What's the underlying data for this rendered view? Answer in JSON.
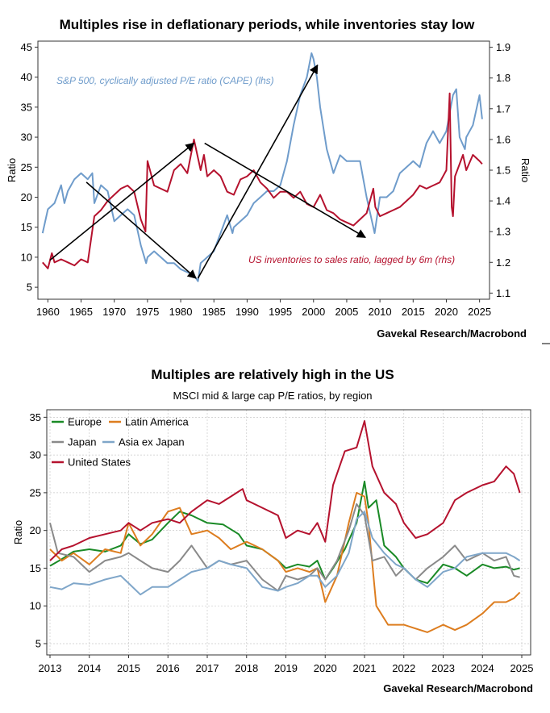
{
  "colors": {
    "blue": "#6f9ccb",
    "red": "#b5122e",
    "green": "#1a8a26",
    "orange": "#dd7d1f",
    "gray": "#8a8a8a",
    "ltblue": "#7fa6c9",
    "grid": "#c9c9c9"
  },
  "chart_data": [
    {
      "type": "line",
      "title": "Multiples rise in deflationary periods, while inventories stay low",
      "source": "Gavekal Research/Macrobond",
      "ylabel_left": "Ratio",
      "ylabel_right": "Ratio",
      "ylim_left": [
        3,
        46
      ],
      "ylim_right": [
        1.08,
        1.92
      ],
      "xlim": [
        1958.5,
        2026.5
      ],
      "xticks": [
        "1960",
        "1965",
        "1970",
        "1975",
        "1980",
        "1985",
        "1990",
        "1995",
        "2000",
        "2005",
        "2010",
        "2015",
        "2020",
        "2025"
      ],
      "yticks_left": [
        "5",
        "10",
        "15",
        "20",
        "25",
        "30",
        "35",
        "40",
        "45"
      ],
      "yticks_right": [
        "1.1",
        "1.2",
        "1.3",
        "1.4",
        "1.5",
        "1.6",
        "1.7",
        "1.8",
        "1.9"
      ],
      "annotations": {
        "cape": "S&P 500, cyclically adjusted P/E ratio (CAPE) (lhs)",
        "inv": "US inventories to sales ratio, lagged by 6m (rhs)"
      },
      "series": [
        {
          "name": "S&P 500, cyclically adjusted P/E ratio (CAPE) (lhs)",
          "axis": "left",
          "color": "blue",
          "x": [
            1959.2,
            1960,
            1961,
            1962,
            1962.5,
            1963,
            1964,
            1965,
            1966,
            1966.7,
            1967,
            1968,
            1969,
            1970,
            1971,
            1972,
            1973,
            1974,
            1974.8,
            1975,
            1976,
            1977,
            1978,
            1979,
            1980,
            1981,
            1982,
            1982.6,
            1983,
            1984,
            1985,
            1986,
            1987,
            1987.8,
            1988,
            1989,
            1990,
            1991,
            1992,
            1993,
            1994,
            1995,
            1996,
            1997,
            1998,
            1999,
            1999.7,
            2000,
            2000.5,
            2001,
            2002,
            2003,
            2004,
            2005,
            2006,
            2007,
            2008,
            2009,
            2009.2,
            2010,
            2011,
            2012,
            2013,
            2014,
            2015,
            2016,
            2017,
            2018,
            2019,
            2020,
            2021,
            2021.5,
            2022,
            2022.8,
            2023,
            2024,
            2025,
            2025.4
          ],
          "values": [
            14,
            18,
            19,
            22,
            19,
            21,
            23,
            24,
            23,
            24,
            19,
            22,
            21,
            16,
            17,
            18,
            17,
            12,
            9,
            10,
            11,
            10,
            9,
            9,
            8,
            7.5,
            7,
            6,
            9,
            10,
            11,
            14,
            17,
            14,
            15,
            16,
            17,
            19,
            20,
            21,
            21,
            22,
            26,
            32,
            37,
            40,
            44,
            43,
            40,
            35,
            28,
            24,
            27,
            26,
            26,
            26,
            20,
            15,
            14,
            20,
            20,
            21,
            24,
            25,
            26,
            25,
            29,
            31,
            29,
            31,
            37,
            38,
            30,
            28,
            30,
            32,
            37,
            33
          ]
        },
        {
          "name": "US inventories to sales ratio, lagged by 6m (rhs)",
          "axis": "right",
          "color": "red",
          "x": [
            1959.2,
            1960,
            1960.6,
            1961,
            1962,
            1963,
            1964,
            1965,
            1966,
            1967,
            1968,
            1969,
            1970,
            1971,
            1972,
            1973,
            1974,
            1974.7,
            1975,
            1976,
            1977,
            1978,
            1979,
            1980,
            1981,
            1982,
            1983,
            1983.5,
            1984,
            1985,
            1986,
            1987,
            1988,
            1989,
            1990,
            1991,
            1992,
            1993,
            1994,
            1995,
            1996,
            1997,
            1998,
            1999,
            2000,
            2001,
            2002,
            2003,
            2004,
            2005,
            2006,
            2007,
            2008,
            2009,
            2009.3,
            2010,
            2011,
            2012,
            2013,
            2014,
            2015,
            2016,
            2017,
            2018,
            2019,
            2020,
            2020.5,
            2020.8,
            2021,
            2021.3,
            2022,
            2022.5,
            2023,
            2024,
            2025,
            2025.4
          ],
          "values": [
            1.2,
            1.18,
            1.23,
            1.2,
            1.21,
            1.2,
            1.19,
            1.21,
            1.2,
            1.35,
            1.37,
            1.4,
            1.42,
            1.44,
            1.45,
            1.43,
            1.34,
            1.3,
            1.53,
            1.45,
            1.44,
            1.43,
            1.5,
            1.52,
            1.49,
            1.6,
            1.5,
            1.55,
            1.48,
            1.5,
            1.48,
            1.43,
            1.42,
            1.47,
            1.48,
            1.5,
            1.46,
            1.44,
            1.41,
            1.43,
            1.43,
            1.41,
            1.43,
            1.39,
            1.38,
            1.42,
            1.37,
            1.36,
            1.34,
            1.33,
            1.32,
            1.34,
            1.36,
            1.44,
            1.38,
            1.35,
            1.36,
            1.37,
            1.38,
            1.4,
            1.42,
            1.45,
            1.44,
            1.45,
            1.46,
            1.5,
            1.75,
            1.38,
            1.35,
            1.48,
            1.52,
            1.55,
            1.5,
            1.55,
            1.53,
            1.52
          ]
        }
      ],
      "arrows": [
        {
          "from": [
            1960.3,
            9.5
          ],
          "to": [
            1982,
            29
          ]
        },
        {
          "from": [
            1965.8,
            22.5
          ],
          "to": [
            1982.3,
            6.5
          ]
        },
        {
          "from": [
            1982.6,
            6.5
          ],
          "to": [
            2000.6,
            42
          ]
        },
        {
          "from": [
            1983.6,
            29
          ],
          "to": [
            2007.8,
            13.3
          ]
        }
      ]
    },
    {
      "type": "line",
      "title": "Multiples are relatively high in the US",
      "subtitle": "MSCI mid & large cap P/E ratios, by region",
      "source": "Gavekal Research/Macrobond",
      "ylabel": "Ratio",
      "ylim": [
        3.5,
        36
      ],
      "xlim": [
        2013,
        2025
      ],
      "xticks": [
        "2013",
        "2014",
        "2015",
        "2016",
        "2017",
        "2018",
        "2019",
        "2020",
        "2021",
        "2022",
        "2023",
        "2024",
        "2025"
      ],
      "yticks": [
        "5",
        "10",
        "15",
        "20",
        "25",
        "30",
        "35"
      ],
      "legend": [
        "Europe",
        "Latin America",
        "Japan",
        "Asia ex Japan",
        "United States"
      ],
      "series": [
        {
          "name": "Europe",
          "color": "green",
          "x": [
            2013,
            2013.3,
            2013.6,
            2014,
            2014.4,
            2014.8,
            2015,
            2015.3,
            2015.6,
            2016,
            2016.3,
            2016.6,
            2017,
            2017.4,
            2017.8,
            2018,
            2018.4,
            2018.8,
            2019,
            2019.3,
            2019.6,
            2019.8,
            2020,
            2020.2,
            2020.5,
            2020.8,
            2021,
            2021.1,
            2021.3,
            2021.5,
            2021.8,
            2022,
            2022.3,
            2022.6,
            2023,
            2023.3,
            2023.6,
            2024,
            2024.3,
            2024.6,
            2024.8,
            2024.95
          ],
          "values": [
            15.3,
            16.2,
            17.2,
            17.5,
            17.2,
            18.0,
            19.5,
            18.2,
            18.8,
            21.0,
            22.5,
            22.0,
            21.0,
            20.8,
            19.5,
            18.0,
            17.5,
            16.0,
            15.0,
            15.5,
            15.2,
            16.0,
            13.5,
            15.0,
            17.5,
            21.0,
            26.5,
            23.0,
            24.0,
            18.0,
            16.5,
            15.0,
            13.5,
            13.0,
            15.5,
            15.0,
            14.0,
            15.5,
            15.0,
            15.2,
            14.8,
            15.0
          ]
        },
        {
          "name": "Latin America",
          "color": "orange",
          "x": [
            2013,
            2013.3,
            2013.6,
            2014,
            2014.4,
            2014.8,
            2015,
            2015.3,
            2015.6,
            2016,
            2016.3,
            2016.6,
            2017,
            2017.3,
            2017.6,
            2018,
            2018.4,
            2018.8,
            2019,
            2019.3,
            2019.6,
            2019.8,
            2020,
            2020.3,
            2020.6,
            2020.8,
            2021,
            2021.1,
            2021.3,
            2021.6,
            2022,
            2022.3,
            2022.6,
            2023,
            2023.3,
            2023.6,
            2024,
            2024.3,
            2024.6,
            2024.8,
            2024.95
          ],
          "values": [
            17.5,
            16.0,
            17.0,
            15.5,
            17.5,
            17.0,
            21.0,
            18.0,
            19.5,
            22.5,
            23.0,
            19.5,
            20.0,
            19.0,
            17.5,
            18.5,
            17.5,
            16.0,
            14.5,
            15.0,
            14.5,
            15.0,
            10.5,
            14.0,
            21.0,
            25.0,
            24.5,
            21.0,
            10.0,
            7.5,
            7.5,
            7.0,
            6.5,
            7.5,
            6.8,
            7.5,
            9.0,
            10.5,
            10.5,
            11.0,
            11.8
          ]
        },
        {
          "name": "Japan",
          "color": "gray",
          "x": [
            2013,
            2013.2,
            2013.6,
            2014,
            2014.4,
            2014.8,
            2015,
            2015.3,
            2015.6,
            2016,
            2016.3,
            2016.6,
            2017,
            2017.3,
            2017.6,
            2018,
            2018.4,
            2018.8,
            2019,
            2019.3,
            2019.6,
            2019.8,
            2020,
            2020.3,
            2020.6,
            2020.8,
            2021,
            2021.2,
            2021.5,
            2021.8,
            2022,
            2022.3,
            2022.6,
            2023,
            2023.3,
            2023.6,
            2024,
            2024.3,
            2024.6,
            2024.8,
            2024.95
          ],
          "values": [
            21.0,
            17.0,
            16.5,
            14.5,
            16.0,
            16.5,
            17.0,
            16.0,
            15.0,
            14.5,
            16.0,
            18.0,
            15.0,
            16.0,
            15.5,
            16.0,
            13.5,
            12.0,
            14.0,
            13.5,
            14.0,
            15.0,
            13.5,
            16.0,
            20.0,
            23.5,
            22.0,
            16.0,
            16.5,
            14.0,
            15.0,
            13.5,
            15.0,
            16.5,
            18.0,
            16.0,
            17.0,
            16.0,
            16.5,
            14.0,
            13.8
          ]
        },
        {
          "name": "Asia ex Japan",
          "color": "ltblue",
          "x": [
            2013,
            2013.3,
            2013.6,
            2014,
            2014.4,
            2014.8,
            2015,
            2015.3,
            2015.6,
            2016,
            2016.3,
            2016.6,
            2017,
            2017.3,
            2017.6,
            2018,
            2018.4,
            2018.8,
            2019,
            2019.3,
            2019.6,
            2019.8,
            2020,
            2020.3,
            2020.6,
            2020.8,
            2021,
            2021.2,
            2021.5,
            2021.8,
            2022,
            2022.3,
            2022.6,
            2023,
            2023.3,
            2023.6,
            2024,
            2024.3,
            2024.6,
            2024.8,
            2024.95
          ],
          "values": [
            12.5,
            12.2,
            13.0,
            12.8,
            13.5,
            14.0,
            13.0,
            11.5,
            12.5,
            12.5,
            13.5,
            14.5,
            15.0,
            16.0,
            15.5,
            15.0,
            12.5,
            12.0,
            12.5,
            13.0,
            14.0,
            14.0,
            12.5,
            14.0,
            17.0,
            21.5,
            22.5,
            19.0,
            17.0,
            15.5,
            15.0,
            13.5,
            12.5,
            14.5,
            15.0,
            16.5,
            17.0,
            17.0,
            17.0,
            16.5,
            16.0
          ]
        },
        {
          "name": "United States",
          "color": "red",
          "x": [
            2013,
            2013.3,
            2013.6,
            2014,
            2014.4,
            2014.8,
            2015,
            2015.3,
            2015.6,
            2016,
            2016.3,
            2016.6,
            2017,
            2017.3,
            2017.6,
            2017.9,
            2018,
            2018.4,
            2018.8,
            2019,
            2019.3,
            2019.6,
            2019.8,
            2020,
            2020.2,
            2020.5,
            2020.8,
            2021,
            2021.2,
            2021.5,
            2021.8,
            2022,
            2022.3,
            2022.6,
            2023,
            2023.3,
            2023.6,
            2024,
            2024.3,
            2024.6,
            2024.8,
            2024.95
          ],
          "values": [
            16.0,
            17.5,
            18.0,
            19.0,
            19.5,
            20.0,
            21.0,
            20.0,
            21.0,
            21.5,
            21.0,
            22.5,
            24.0,
            23.5,
            24.5,
            25.5,
            24.0,
            23.0,
            22.0,
            19.0,
            20.0,
            19.5,
            21.0,
            18.5,
            26.0,
            30.5,
            31.0,
            34.5,
            28.5,
            25.0,
            23.5,
            21.0,
            19.0,
            19.5,
            21.0,
            24.0,
            25.0,
            26.0,
            26.5,
            28.5,
            27.5,
            25.0
          ]
        }
      ]
    }
  ]
}
